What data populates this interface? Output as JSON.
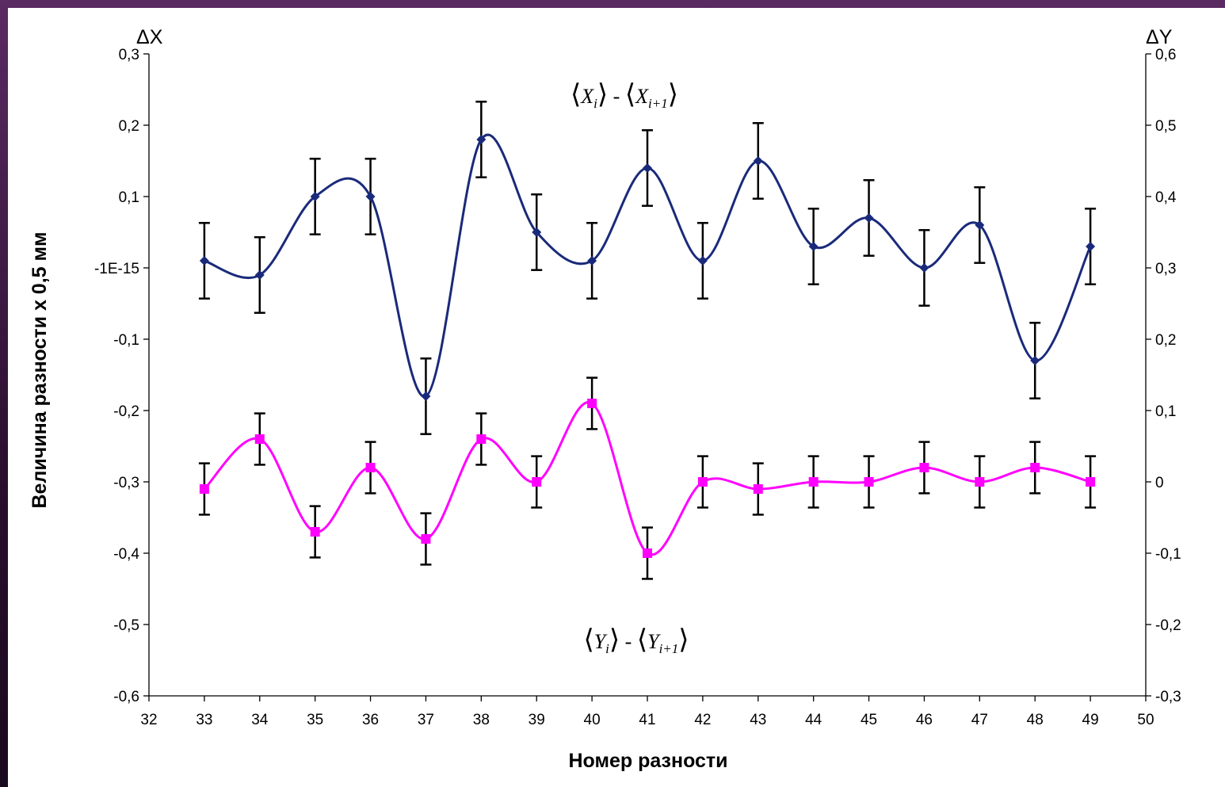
{
  "chart_data": {
    "type": "line",
    "xlabel": "Номер разности",
    "ylabel": "Величина разности х 0,5 мм",
    "y_left_corner_label": "ΔX",
    "y_right_corner_label": "ΔY",
    "xlim": [
      32,
      50
    ],
    "ylim_left": [
      -0.6,
      0.3
    ],
    "ylim_right": [
      -0.3,
      0.6
    ],
    "x_ticks": [
      32,
      33,
      34,
      35,
      36,
      37,
      38,
      39,
      40,
      41,
      42,
      43,
      44,
      45,
      46,
      47,
      48,
      49,
      50
    ],
    "x_tick_labels": [
      "32",
      "33",
      "34",
      "35",
      "36",
      "37",
      "38",
      "39",
      "40",
      "41",
      "42",
      "43",
      "44",
      "45",
      "46",
      "47",
      "48",
      "49",
      "50"
    ],
    "y_left_ticks": [
      -0.6,
      -0.5,
      -0.4,
      -0.3,
      -0.2,
      -0.1,
      0,
      0.1,
      0.2,
      0.3
    ],
    "y_left_tick_labels": [
      "-0,6",
      "-0,5",
      "-0,4",
      "-0,3",
      "-0,2",
      "-0,1",
      "-1E-15",
      "0,1",
      "0,2",
      "0,3"
    ],
    "y_right_ticks": [
      -0.3,
      -0.2,
      -0.1,
      0,
      0.1,
      0.2,
      0.3,
      0.4,
      0.5,
      0.6
    ],
    "y_right_tick_labels": [
      "-0,3",
      "-0,2",
      "-0,1",
      "0",
      "0,1",
      "0,2",
      "0,3",
      "0,4",
      "0,5",
      "0,6"
    ],
    "grid": false,
    "series": [
      {
        "axis": "left",
        "color": "#1a2a7a",
        "marker": "diamond",
        "x": [
          33,
          34,
          35,
          36,
          37,
          38,
          39,
          40,
          41,
          42,
          43,
          44,
          45,
          46,
          47,
          48,
          49
        ],
        "values": [
          0.01,
          -0.01,
          0.1,
          0.1,
          -0.18,
          0.18,
          0.05,
          0.01,
          0.14,
          0.01,
          0.15,
          0.03,
          0.07,
          0.0,
          0.06,
          -0.13,
          0.03
        ],
        "error": 0.053
      },
      {
        "axis": "left",
        "color": "#ff00ff",
        "marker": "square",
        "x": [
          33,
          34,
          35,
          36,
          37,
          38,
          39,
          40,
          41,
          42,
          43,
          44,
          45,
          46,
          47,
          48,
          49
        ],
        "values": [
          -0.31,
          -0.24,
          -0.37,
          -0.28,
          -0.38,
          -0.24,
          -0.3,
          -0.19,
          -0.4,
          -0.3,
          -0.31,
          -0.3,
          -0.3,
          -0.28,
          -0.3,
          -0.28,
          -0.3
        ],
        "error": 0.036
      }
    ],
    "annotations": [
      {
        "series": 0,
        "text_parts": [
          "⟨",
          "X",
          "i",
          "⟩",
          " - ",
          "⟨",
          "X",
          "i+1",
          "⟩"
        ]
      },
      {
        "series": 1,
        "text_parts": [
          "⟨",
          "Y",
          "i",
          "⟩",
          " - ",
          "⟨",
          "Y",
          "i+1",
          "⟩"
        ]
      }
    ]
  }
}
